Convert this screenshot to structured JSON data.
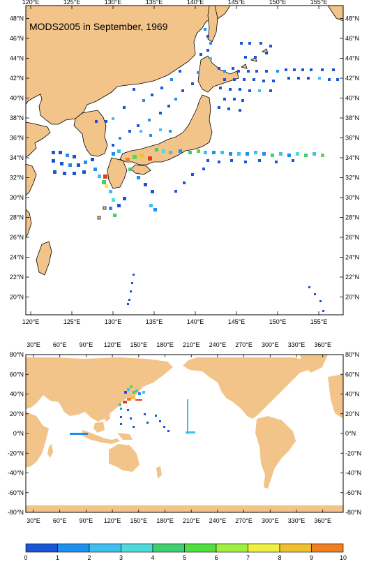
{
  "top_map": {
    "title": "MODS2005 in September, 1969",
    "lon_labels": [
      "120°E",
      "125°E",
      "130°E",
      "135°E",
      "140°E",
      "145°E",
      "150°E",
      "155°E"
    ],
    "lat_labels": [
      "48°N",
      "46°N",
      "44°N",
      "42°N",
      "40°N",
      "38°N",
      "36°N",
      "34°N",
      "32°N",
      "30°N",
      "28°N",
      "26°N",
      "24°N",
      "22°N",
      "20°N"
    ]
  },
  "bottom_map": {
    "lon_labels": [
      "30°E",
      "60°E",
      "90°E",
      "120°E",
      "150°E",
      "180°E",
      "210°E",
      "240°E",
      "270°E",
      "300°E",
      "330°E",
      "360°E"
    ],
    "lat_labels": [
      "80°N",
      "60°N",
      "40°N",
      "20°N",
      "0°N",
      "-20°N",
      "-40°N",
      "-60°N",
      "-80°N"
    ]
  },
  "colorbar": {
    "labels": [
      "0",
      "1",
      "2",
      "3",
      "4",
      "5",
      "6",
      "7",
      "8",
      "9",
      "10"
    ],
    "colors": [
      "#1a55d6",
      "#1f8fef",
      "#3fbfef",
      "#4fd9d9",
      "#3fcf6f",
      "#4fdf3f",
      "#9fef3f",
      "#efef3f",
      "#efbf2f",
      "#ef7f1f",
      "#df3f1f"
    ]
  },
  "colors": {
    "land": "#f2c48a",
    "ocean": "#ffffff"
  }
}
